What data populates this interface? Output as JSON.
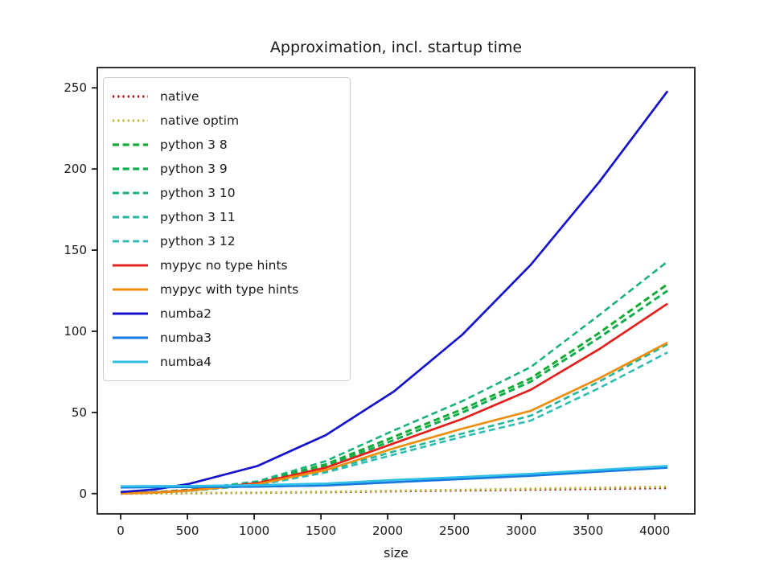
{
  "figure": {
    "title": "Approximation, incl. startup time",
    "xlabel": "size",
    "background_color": "#ffffff",
    "spine_color": "#1a1a1a"
  },
  "chart_data": {
    "type": "line",
    "title": "Approximation, incl. startup time",
    "xlabel": "size",
    "ylabel": "",
    "grid": false,
    "legend_position": "upper left",
    "xlim": [
      -175,
      4300
    ],
    "ylim": [
      -12.5,
      262.5
    ],
    "xticks": [
      0,
      500,
      1000,
      1500,
      2000,
      2500,
      3000,
      3500,
      4000
    ],
    "yticks": [
      0,
      50,
      100,
      150,
      200,
      250
    ],
    "x": [
      0,
      256,
      512,
      1024,
      1536,
      2048,
      2560,
      3072,
      3584,
      4096
    ],
    "series": [
      {
        "name": "native",
        "color": "#9b1b1b",
        "style": "dotted",
        "width": 2.8,
        "values": [
          0.0,
          0.1,
          0.2,
          0.5,
          0.9,
          1.4,
          1.9,
          2.4,
          2.9,
          3.4
        ]
      },
      {
        "name": "native optim",
        "color": "#b9b837",
        "style": "dotted",
        "width": 2.8,
        "values": [
          0.0,
          0.1,
          0.3,
          0.6,
          1.1,
          1.7,
          2.3,
          3.0,
          3.6,
          4.2
        ]
      },
      {
        "name": "python 3 8",
        "color": "#12ab33",
        "style": "dashed",
        "width": 3.0,
        "values": [
          0.1,
          0.8,
          2.2,
          7.0,
          18,
          35,
          52,
          71,
          99,
          129
        ]
      },
      {
        "name": "python 3 9",
        "color": "#10ad4e",
        "style": "dashed",
        "width": 3.0,
        "values": [
          0.1,
          0.8,
          2.1,
          6.7,
          17,
          33,
          50,
          69,
          96,
          125
        ]
      },
      {
        "name": "python 3 10",
        "color": "#17b278",
        "style": "dashed",
        "width": 2.6,
        "values": [
          0.1,
          0.9,
          2.4,
          7.5,
          20,
          39,
          57,
          78,
          110,
          143
        ]
      },
      {
        "name": "python 3 11",
        "color": "#22b69b",
        "style": "dashed",
        "width": 2.6,
        "values": [
          0.1,
          0.6,
          1.7,
          5.5,
          14,
          26,
          37,
          48,
          69,
          92
        ]
      },
      {
        "name": "python 3 12",
        "color": "#31bcb4",
        "style": "dashed",
        "width": 2.6,
        "values": [
          0.1,
          0.6,
          1.6,
          5.2,
          13,
          24,
          35,
          45,
          65,
          87
        ]
      },
      {
        "name": "mypyc no type hints",
        "color": "#e3201b",
        "style": "solid",
        "width": 2.7,
        "values": [
          0.1,
          0.7,
          2.0,
          6.5,
          16,
          31,
          46,
          64,
          89,
          117
        ]
      },
      {
        "name": "mypyc with type hints",
        "color": "#ef8e0e",
        "style": "solid",
        "width": 2.7,
        "values": [
          0.1,
          0.6,
          1.8,
          5.8,
          14.5,
          28,
          40,
          51,
          71,
          93
        ]
      },
      {
        "name": "numba2",
        "color": "#1412cc",
        "style": "solid",
        "width": 2.7,
        "values": [
          1.0,
          2.5,
          6.0,
          17,
          36,
          63,
          98,
          141,
          192,
          248
        ]
      },
      {
        "name": "numba3",
        "color": "#1779de",
        "style": "solid",
        "width": 2.7,
        "values": [
          3.8,
          3.9,
          4.0,
          4.3,
          5.0,
          7.0,
          9.0,
          11,
          13.5,
          16
        ]
      },
      {
        "name": "numba4",
        "color": "#2fc0e8",
        "style": "solid",
        "width": 2.7,
        "values": [
          4.5,
          4.6,
          4.7,
          5.2,
          6.2,
          8.4,
          10.2,
          12.2,
          14.6,
          17
        ]
      }
    ]
  }
}
